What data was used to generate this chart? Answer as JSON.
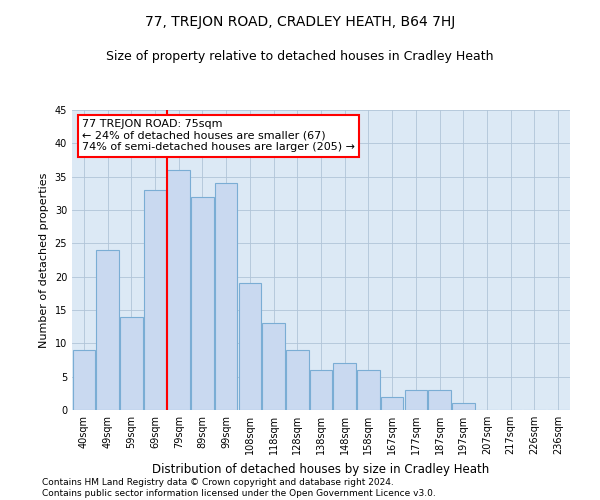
{
  "title": "77, TREJON ROAD, CRADLEY HEATH, B64 7HJ",
  "subtitle": "Size of property relative to detached houses in Cradley Heath",
  "xlabel": "Distribution of detached houses by size in Cradley Heath",
  "ylabel": "Number of detached properties",
  "categories": [
    "40sqm",
    "49sqm",
    "59sqm",
    "69sqm",
    "79sqm",
    "89sqm",
    "99sqm",
    "108sqm",
    "118sqm",
    "128sqm",
    "138sqm",
    "148sqm",
    "158sqm",
    "167sqm",
    "177sqm",
    "187sqm",
    "197sqm",
    "207sqm",
    "217sqm",
    "226sqm",
    "236sqm"
  ],
  "values": [
    9,
    24,
    14,
    33,
    36,
    32,
    34,
    19,
    13,
    9,
    6,
    7,
    6,
    2,
    3,
    3,
    1,
    0,
    0,
    0,
    0
  ],
  "bar_color": "#c9d9f0",
  "bar_edge_color": "#7aadd4",
  "vline_x": 3.5,
  "vline_color": "red",
  "annotation_text": "77 TREJON ROAD: 75sqm\n← 24% of detached houses are smaller (67)\n74% of semi-detached houses are larger (205) →",
  "annotation_box_color": "white",
  "annotation_box_edge": "red",
  "ylim": [
    0,
    45
  ],
  "yticks": [
    0,
    5,
    10,
    15,
    20,
    25,
    30,
    35,
    40,
    45
  ],
  "grid_color": "#b0c4d8",
  "background_color": "#dce9f5",
  "footer_line1": "Contains HM Land Registry data © Crown copyright and database right 2024.",
  "footer_line2": "Contains public sector information licensed under the Open Government Licence v3.0.",
  "title_fontsize": 10,
  "subtitle_fontsize": 9,
  "annotation_fontsize": 8,
  "footer_fontsize": 6.5,
  "tick_fontsize": 7,
  "ylabel_fontsize": 8,
  "xlabel_fontsize": 8.5
}
